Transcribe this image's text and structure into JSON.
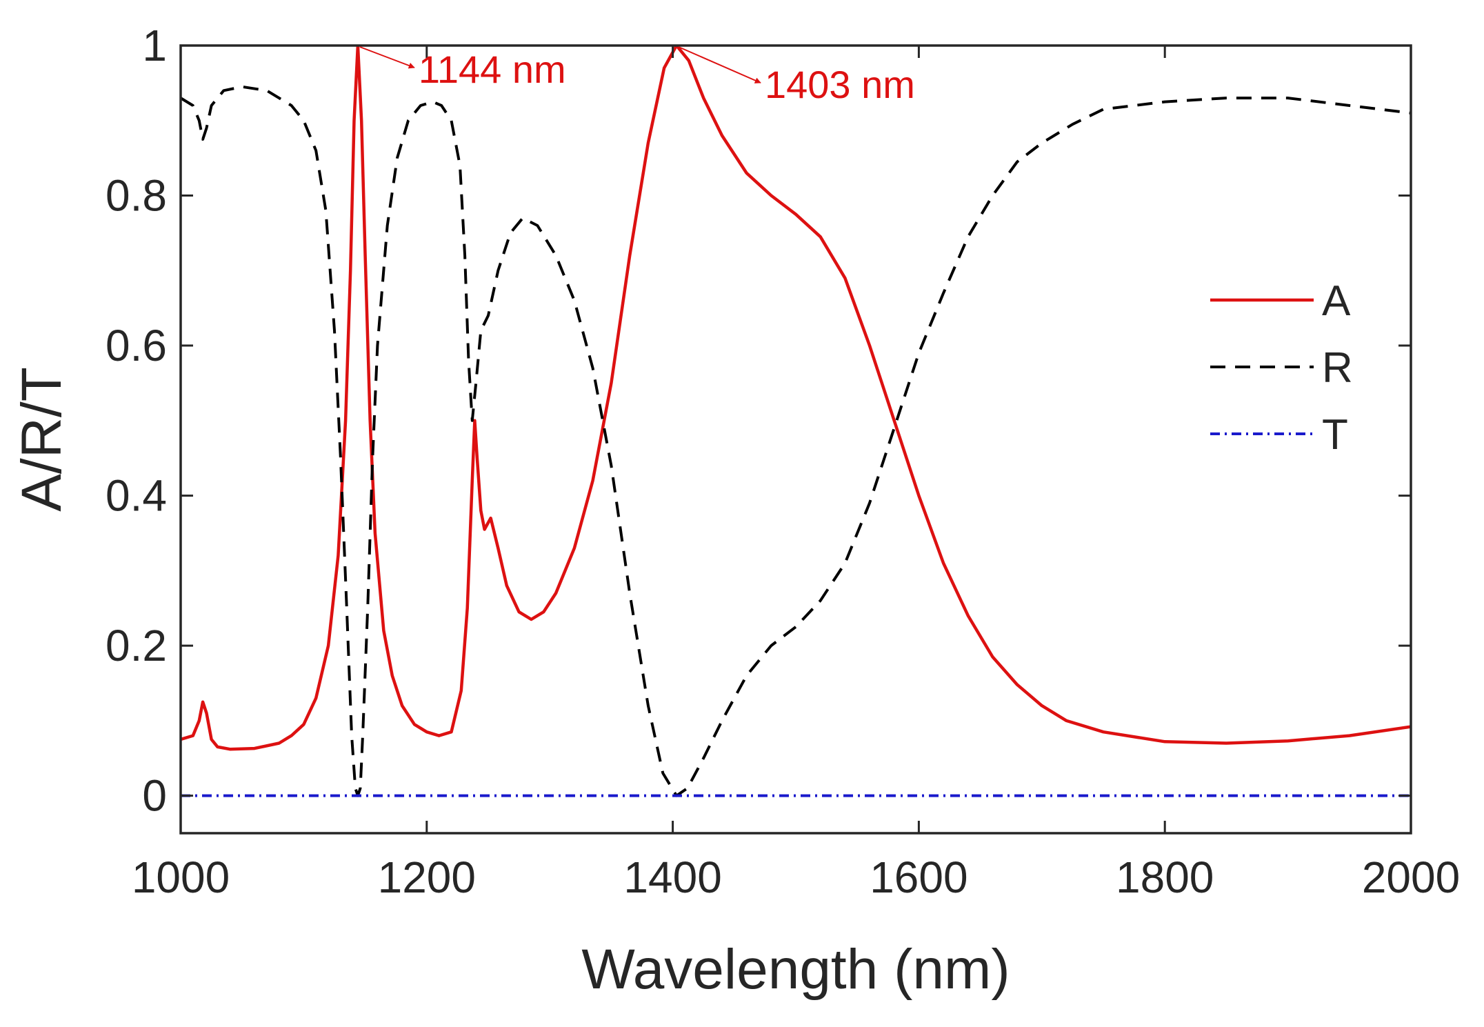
{
  "chart_data": {
    "type": "line",
    "xlabel": "Wavelength (nm)",
    "ylabel": "A/R/T",
    "xlim": [
      1000,
      2000
    ],
    "ylim": [
      -0.05,
      1.0
    ],
    "xticks": [
      1000,
      1200,
      1400,
      1600,
      1800,
      2000
    ],
    "yticks": [
      0,
      0.2,
      0.4,
      0.6,
      0.8,
      1
    ],
    "ytick_labels": [
      "0",
      "0.2",
      "0.4",
      "0.6",
      "0.8",
      "1"
    ],
    "grid": false,
    "legend_position": "right",
    "series": [
      {
        "name": "A",
        "color": "#dd1111",
        "style": "solid",
        "points": [
          [
            1000,
            0.075
          ],
          [
            1010,
            0.08
          ],
          [
            1015,
            0.1
          ],
          [
            1018,
            0.125
          ],
          [
            1021,
            0.11
          ],
          [
            1025,
            0.075
          ],
          [
            1030,
            0.065
          ],
          [
            1040,
            0.062
          ],
          [
            1060,
            0.063
          ],
          [
            1080,
            0.07
          ],
          [
            1090,
            0.08
          ],
          [
            1100,
            0.095
          ],
          [
            1110,
            0.13
          ],
          [
            1120,
            0.2
          ],
          [
            1128,
            0.32
          ],
          [
            1134,
            0.5
          ],
          [
            1138,
            0.7
          ],
          [
            1141,
            0.9
          ],
          [
            1144,
            1.0
          ],
          [
            1147,
            0.9
          ],
          [
            1150,
            0.72
          ],
          [
            1154,
            0.5
          ],
          [
            1158,
            0.35
          ],
          [
            1165,
            0.22
          ],
          [
            1172,
            0.16
          ],
          [
            1180,
            0.12
          ],
          [
            1190,
            0.095
          ],
          [
            1200,
            0.085
          ],
          [
            1210,
            0.08
          ],
          [
            1220,
            0.085
          ],
          [
            1228,
            0.14
          ],
          [
            1233,
            0.25
          ],
          [
            1237,
            0.42
          ],
          [
            1239,
            0.5
          ],
          [
            1241,
            0.45
          ],
          [
            1244,
            0.38
          ],
          [
            1247,
            0.355
          ],
          [
            1252,
            0.37
          ],
          [
            1258,
            0.33
          ],
          [
            1265,
            0.28
          ],
          [
            1275,
            0.245
          ],
          [
            1285,
            0.235
          ],
          [
            1295,
            0.245
          ],
          [
            1305,
            0.27
          ],
          [
            1320,
            0.33
          ],
          [
            1335,
            0.42
          ],
          [
            1350,
            0.55
          ],
          [
            1365,
            0.72
          ],
          [
            1380,
            0.87
          ],
          [
            1393,
            0.97
          ],
          [
            1403,
            1.0
          ],
          [
            1413,
            0.98
          ],
          [
            1425,
            0.93
          ],
          [
            1440,
            0.88
          ],
          [
            1460,
            0.83
          ],
          [
            1480,
            0.8
          ],
          [
            1500,
            0.775
          ],
          [
            1520,
            0.745
          ],
          [
            1540,
            0.69
          ],
          [
            1560,
            0.6
          ],
          [
            1580,
            0.5
          ],
          [
            1600,
            0.4
          ],
          [
            1620,
            0.31
          ],
          [
            1640,
            0.24
          ],
          [
            1660,
            0.185
          ],
          [
            1680,
            0.148
          ],
          [
            1700,
            0.12
          ],
          [
            1720,
            0.1
          ],
          [
            1750,
            0.085
          ],
          [
            1800,
            0.072
          ],
          [
            1850,
            0.07
          ],
          [
            1900,
            0.073
          ],
          [
            1950,
            0.08
          ],
          [
            2000,
            0.092
          ]
        ]
      },
      {
        "name": "R",
        "color": "#000000",
        "style": "dashed",
        "points": [
          [
            1000,
            0.93
          ],
          [
            1010,
            0.92
          ],
          [
            1015,
            0.9
          ],
          [
            1018,
            0.875
          ],
          [
            1021,
            0.89
          ],
          [
            1025,
            0.92
          ],
          [
            1035,
            0.94
          ],
          [
            1050,
            0.945
          ],
          [
            1070,
            0.94
          ],
          [
            1090,
            0.92
          ],
          [
            1100,
            0.9
          ],
          [
            1110,
            0.86
          ],
          [
            1118,
            0.78
          ],
          [
            1125,
            0.62
          ],
          [
            1130,
            0.45
          ],
          [
            1135,
            0.25
          ],
          [
            1139,
            0.08
          ],
          [
            1142,
            0.01
          ],
          [
            1144,
            0.0
          ],
          [
            1146,
            0.01
          ],
          [
            1148,
            0.08
          ],
          [
            1152,
            0.25
          ],
          [
            1156,
            0.45
          ],
          [
            1160,
            0.6
          ],
          [
            1168,
            0.76
          ],
          [
            1176,
            0.85
          ],
          [
            1185,
            0.9
          ],
          [
            1195,
            0.92
          ],
          [
            1205,
            0.925
          ],
          [
            1212,
            0.92
          ],
          [
            1220,
            0.9
          ],
          [
            1227,
            0.84
          ],
          [
            1231,
            0.72
          ],
          [
            1234,
            0.58
          ],
          [
            1237,
            0.5
          ],
          [
            1240,
            0.55
          ],
          [
            1244,
            0.62
          ],
          [
            1250,
            0.64
          ],
          [
            1258,
            0.7
          ],
          [
            1268,
            0.75
          ],
          [
            1278,
            0.77
          ],
          [
            1290,
            0.76
          ],
          [
            1305,
            0.72
          ],
          [
            1320,
            0.66
          ],
          [
            1335,
            0.57
          ],
          [
            1350,
            0.44
          ],
          [
            1365,
            0.27
          ],
          [
            1380,
            0.12
          ],
          [
            1392,
            0.03
          ],
          [
            1403,
            0.0
          ],
          [
            1412,
            0.01
          ],
          [
            1425,
            0.05
          ],
          [
            1440,
            0.1
          ],
          [
            1460,
            0.16
          ],
          [
            1480,
            0.2
          ],
          [
            1500,
            0.225
          ],
          [
            1520,
            0.26
          ],
          [
            1540,
            0.31
          ],
          [
            1560,
            0.39
          ],
          [
            1580,
            0.49
          ],
          [
            1600,
            0.59
          ],
          [
            1620,
            0.67
          ],
          [
            1640,
            0.745
          ],
          [
            1660,
            0.8
          ],
          [
            1680,
            0.845
          ],
          [
            1700,
            0.87
          ],
          [
            1725,
            0.895
          ],
          [
            1750,
            0.915
          ],
          [
            1800,
            0.925
          ],
          [
            1850,
            0.93
          ],
          [
            1900,
            0.93
          ],
          [
            1950,
            0.92
          ],
          [
            2000,
            0.91
          ]
        ]
      },
      {
        "name": "T",
        "color": "#1a1acc",
        "style": "dashdot",
        "points": [
          [
            1000,
            0.0
          ],
          [
            2000,
            0.0
          ]
        ]
      }
    ],
    "annotations": [
      {
        "text": "1144 nm",
        "x": 1144,
        "y": 1.0,
        "color": "#dd1111"
      },
      {
        "text": "1403 nm",
        "x": 1403,
        "y": 1.0,
        "color": "#dd1111"
      }
    ]
  }
}
